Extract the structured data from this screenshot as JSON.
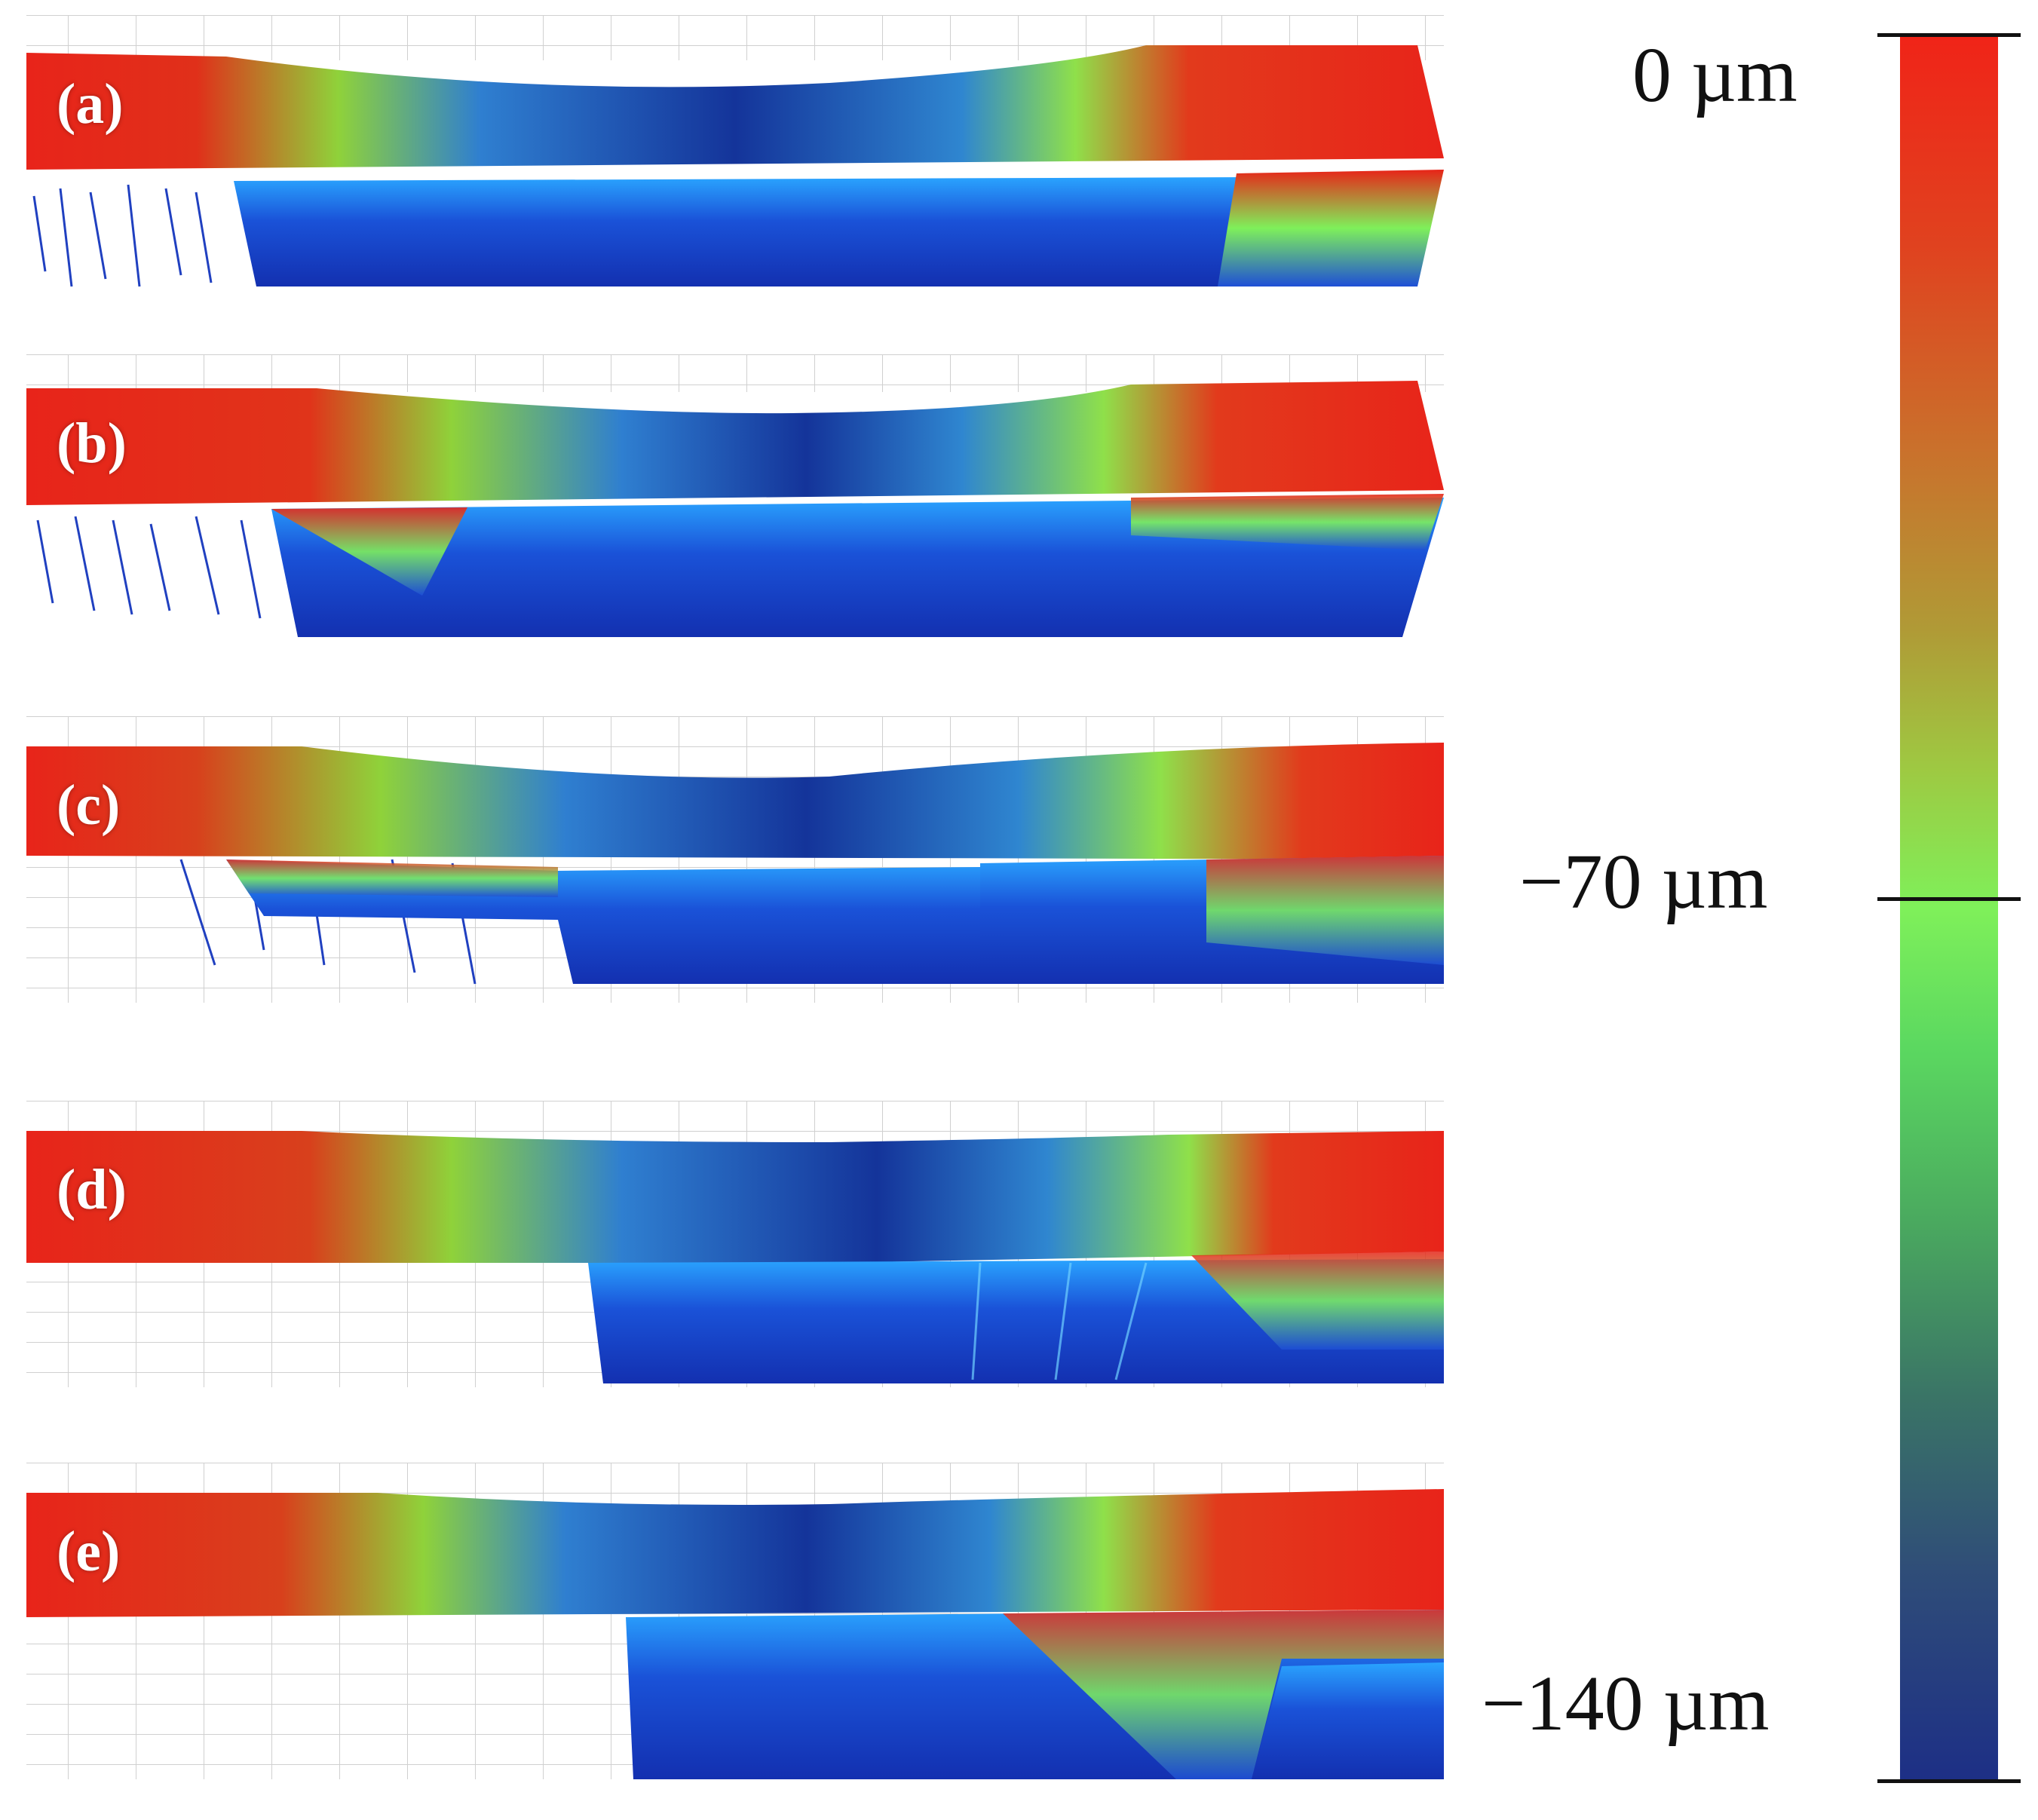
{
  "panels": [
    {
      "label": "(a)"
    },
    {
      "label": "(b)"
    },
    {
      "label": "(c)"
    },
    {
      "label": "(d)"
    },
    {
      "label": "(e)"
    }
  ],
  "colorbar": {
    "top_label": "0 µm",
    "mid_label": "−70 µm",
    "bottom_label": "−140 µm",
    "colors": {
      "high": "#f02418",
      "mid": "#7ff05a",
      "low": "#1d2f86"
    }
  }
}
